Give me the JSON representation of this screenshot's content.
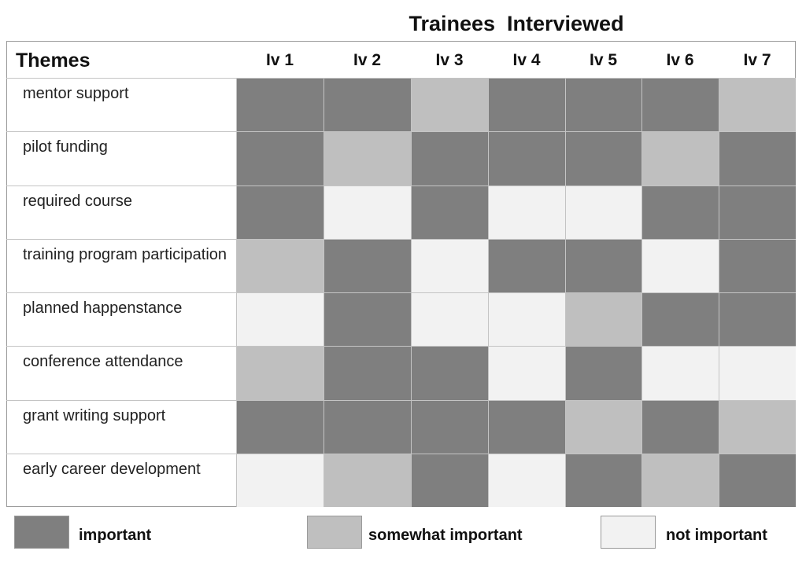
{
  "chart_data": {
    "type": "heatmap",
    "title": "Trainees  Interviewed",
    "row_header": "Themes",
    "columns": [
      "Iv 1",
      "Iv 2",
      "Iv 3",
      "Iv 4",
      "Iv 5",
      "Iv 6",
      "Iv 7"
    ],
    "rows": [
      "mentor support",
      "pilot funding",
      "required course",
      "training program participation",
      "planned happenstance",
      "conference attendance",
      "grant writing support",
      "early career development"
    ],
    "levels": [
      {
        "key": "important",
        "label": "important",
        "color": "#7f7f7f"
      },
      {
        "key": "somewhat",
        "label": "somewhat important",
        "color": "#bfbfbf"
      },
      {
        "key": "not",
        "label": "not important",
        "color": "#f2f2f2"
      }
    ],
    "values": [
      [
        "important",
        "important",
        "somewhat",
        "important",
        "important",
        "important",
        "somewhat"
      ],
      [
        "important",
        "somewhat",
        "important",
        "important",
        "important",
        "somewhat",
        "important"
      ],
      [
        "important",
        "not",
        "important",
        "not",
        "not",
        "important",
        "important"
      ],
      [
        "somewhat",
        "important",
        "not",
        "important",
        "important",
        "not",
        "important"
      ],
      [
        "not",
        "important",
        "not",
        "not",
        "somewhat",
        "important",
        "important"
      ],
      [
        "somewhat",
        "important",
        "important",
        "not",
        "important",
        "not",
        "not"
      ],
      [
        "important",
        "important",
        "important",
        "important",
        "somewhat",
        "important",
        "somewhat"
      ],
      [
        "not",
        "somewhat",
        "important",
        "not",
        "important",
        "somewhat",
        "important"
      ]
    ],
    "legend_position": "bottom",
    "grid": true
  }
}
